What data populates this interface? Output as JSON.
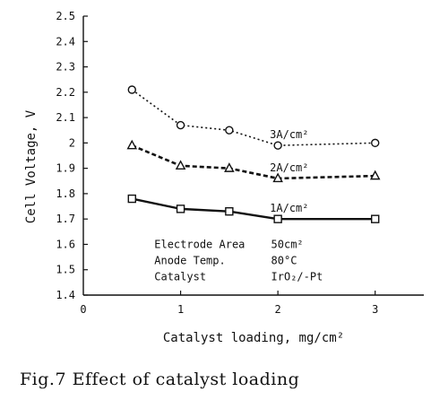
{
  "chart_data": {
    "type": "line",
    "xlabel": "Catalyst loading, mg/cm²",
    "ylabel": "Cell Voltage, V",
    "xlim": [
      0,
      3.5
    ],
    "ylim": [
      1.4,
      2.5
    ],
    "xticks": [
      "0",
      "1",
      "2",
      "3"
    ],
    "yticks": [
      "1.4",
      "1.5",
      "1.6",
      "1.7",
      "1.8",
      "1.9",
      "2",
      "2.1",
      "2.2",
      "2.3",
      "2.4",
      "2.5"
    ],
    "grid": false,
    "series": [
      {
        "name": "3A/cm²",
        "marker": "circle",
        "style": "dotted",
        "x": [
          0.5,
          1,
          1.5,
          2,
          3
        ],
        "y": [
          2.21,
          2.07,
          2.05,
          1.99,
          2.0
        ]
      },
      {
        "name": "2A/cm²",
        "marker": "triangle",
        "style": "dashed",
        "x": [
          0.5,
          1,
          1.5,
          2,
          3
        ],
        "y": [
          1.99,
          1.91,
          1.9,
          1.86,
          1.87
        ]
      },
      {
        "name": "1A/cm²",
        "marker": "square",
        "style": "solid",
        "x": [
          0.5,
          1,
          1.5,
          2,
          3
        ],
        "y": [
          1.78,
          1.74,
          1.73,
          1.7,
          1.7
        ]
      }
    ],
    "annotations": [
      {
        "label": "Electrode Area",
        "value": "50cm²"
      },
      {
        "label": "Anode Temp.",
        "value": "80°C"
      },
      {
        "label": "Catalyst",
        "value": "IrO₂/-Pt"
      }
    ]
  },
  "caption": "Fig.7 Effect of catalyst loading"
}
